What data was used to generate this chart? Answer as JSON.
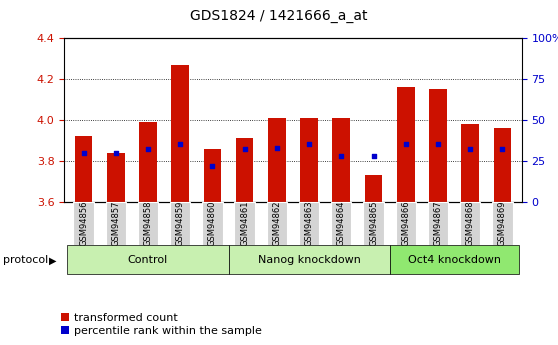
{
  "title": "GDS1824 / 1421666_a_at",
  "samples": [
    "GSM94856",
    "GSM94857",
    "GSM94858",
    "GSM94859",
    "GSM94860",
    "GSM94861",
    "GSM94862",
    "GSM94863",
    "GSM94864",
    "GSM94865",
    "GSM94866",
    "GSM94867",
    "GSM94868",
    "GSM94869"
  ],
  "transformed_count": [
    3.92,
    3.84,
    3.99,
    4.27,
    3.86,
    3.91,
    4.01,
    4.01,
    4.01,
    3.73,
    4.16,
    4.15,
    3.98,
    3.96
  ],
  "percentile_rank": [
    30,
    30,
    32,
    35,
    22,
    32,
    33,
    35,
    28,
    28,
    35,
    35,
    32,
    32
  ],
  "ylim_left": [
    3.6,
    4.4
  ],
  "ylim_right": [
    0,
    100
  ],
  "yticks_left": [
    3.6,
    3.8,
    4.0,
    4.2,
    4.4
  ],
  "yticks_right": [
    0,
    25,
    50,
    75,
    100
  ],
  "ytick_labels_right": [
    "0",
    "25",
    "50",
    "75",
    "100%"
  ],
  "groups": [
    {
      "label": "Control",
      "start": 0,
      "end": 4,
      "color": "#c8f0b0"
    },
    {
      "label": "Nanog knockdown",
      "start": 5,
      "end": 9,
      "color": "#c8f0b0"
    },
    {
      "label": "Oct4 knockdown",
      "start": 10,
      "end": 13,
      "color": "#90e870"
    }
  ],
  "bar_color": "#cc1100",
  "dot_color": "#0000cc",
  "bar_width": 0.55,
  "base_value": 3.6,
  "left_tick_color": "#cc1100",
  "right_tick_color": "#0000cc",
  "title_fontsize": 10,
  "tick_fontsize": 8,
  "legend_fontsize": 8,
  "sample_label_fontsize": 6,
  "group_label_fontsize": 8
}
